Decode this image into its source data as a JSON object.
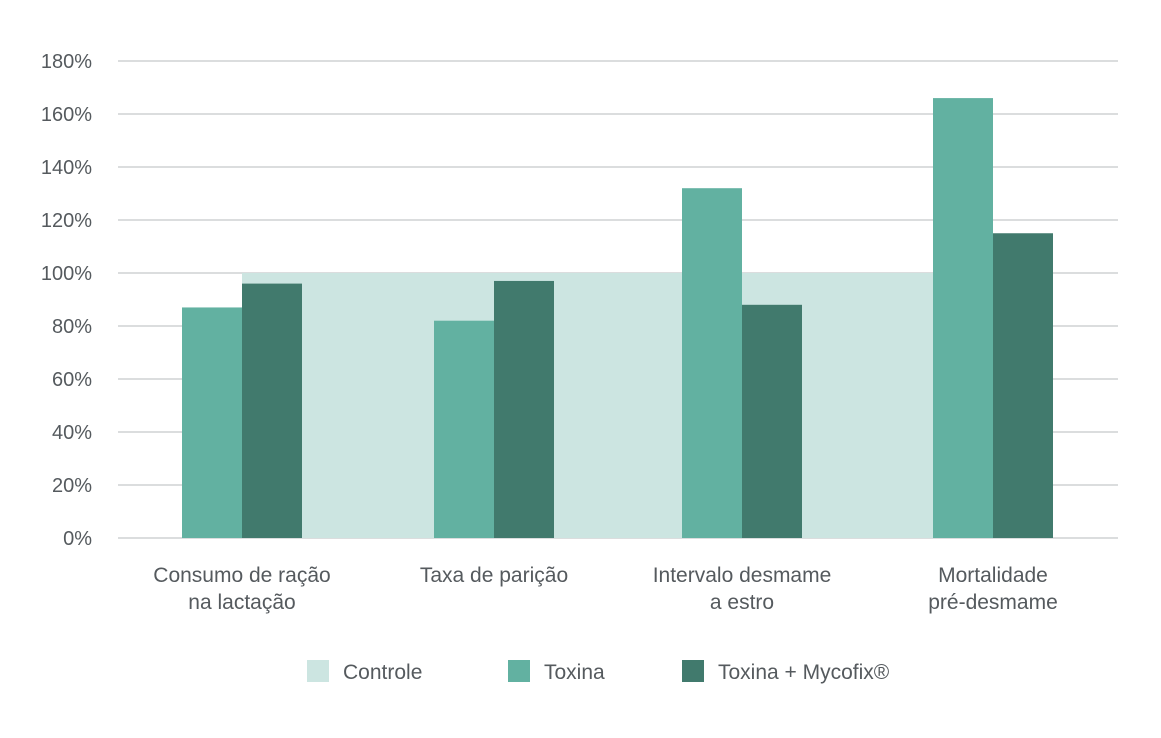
{
  "chart_data": {
    "type": "bar",
    "categories": [
      [
        "Consumo de ração",
        "na lactação"
      ],
      [
        "Taxa de parição"
      ],
      [
        "Intervalo desmame",
        "a estro"
      ],
      [
        "Mortalidade",
        "pré-desmame"
      ]
    ],
    "series": [
      {
        "name": "Controle",
        "values": [
          100,
          100,
          100,
          100
        ],
        "color": "#cce5e1",
        "render": "background-band"
      },
      {
        "name": "Toxina",
        "values": [
          87,
          82,
          132,
          166
        ],
        "color": "#62b1a1"
      },
      {
        "name": "Toxina + Mycofix®",
        "values": [
          96,
          97,
          88,
          115
        ],
        "color": "#417a6d"
      }
    ],
    "y_ticks": [
      "0%",
      "20%",
      "40%",
      "60%",
      "80%",
      "100%",
      "120%",
      "140%",
      "160%",
      "180%"
    ],
    "ylim": [
      0,
      180
    ],
    "grid": true,
    "gridline_color": "#cfd2d4",
    "legend_position": "bottom-center",
    "title": "",
    "xlabel": "",
    "ylabel": ""
  }
}
